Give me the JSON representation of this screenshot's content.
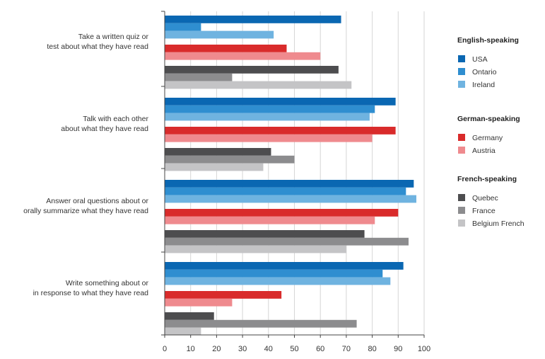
{
  "chart_data": {
    "type": "bar",
    "orientation": "horizontal",
    "xlim": [
      0,
      100
    ],
    "xticks": [
      0,
      10,
      20,
      30,
      40,
      50,
      60,
      70,
      80,
      90,
      100
    ],
    "grid": "vertical",
    "legend_position": "right",
    "categories": [
      [
        "Take a written quiz or",
        "test about what they have read"
      ],
      [
        "Talk with each other",
        "about what they have read"
      ],
      [
        "Answer oral questions about or",
        "orally summarize what they have read"
      ],
      [
        "Write something about or",
        "in response to what they have read"
      ]
    ],
    "legend_groups": [
      {
        "title": "English-speaking",
        "series": [
          0,
          1,
          2
        ]
      },
      {
        "title": "German-speaking",
        "series": [
          3,
          4
        ]
      },
      {
        "title": "French-speaking",
        "series": [
          5,
          6,
          7
        ]
      }
    ],
    "series": [
      {
        "name": "USA",
        "color": "#0a67b2",
        "values": [
          68,
          89,
          96,
          92
        ]
      },
      {
        "name": "Ontario",
        "color": "#2f8ed0",
        "values": [
          14,
          81,
          93,
          84
        ]
      },
      {
        "name": "Ireland",
        "color": "#6fb3e0",
        "values": [
          42,
          79,
          97,
          87
        ]
      },
      {
        "name": "Germany",
        "color": "#d92b2b",
        "values": [
          47,
          89,
          90,
          45
        ]
      },
      {
        "name": "Austria",
        "color": "#ef8a8e",
        "values": [
          60,
          80,
          81,
          26
        ]
      },
      {
        "name": "Quebec",
        "color": "#4d4d4f",
        "values": [
          67,
          41,
          77,
          19
        ]
      },
      {
        "name": "France",
        "color": "#8c8c8e",
        "values": [
          26,
          50,
          94,
          74
        ]
      },
      {
        "name": "Belgium French",
        "color": "#c4c4c6",
        "values": [
          72,
          38,
          70,
          14
        ]
      }
    ]
  }
}
